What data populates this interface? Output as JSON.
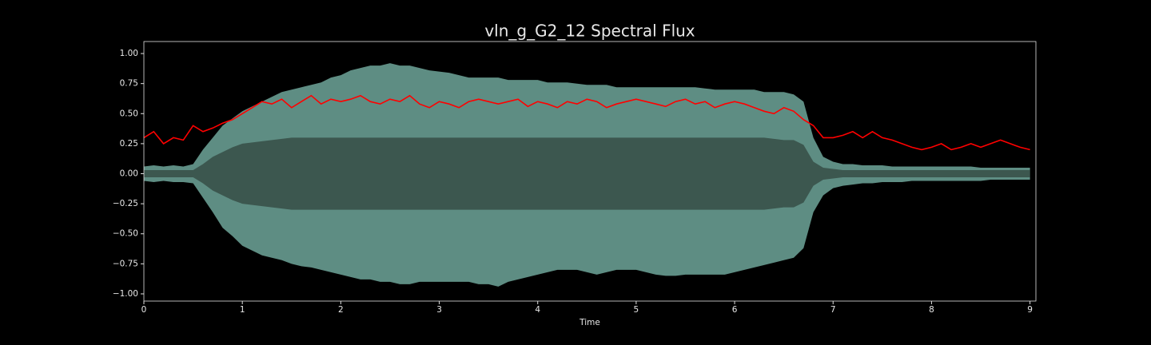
{
  "chart_data": {
    "type": "waveform",
    "title": "vln_g_G2_12 Spectral Flux",
    "xlabel": "Time",
    "xlim": [
      0,
      9.06
    ],
    "ylim": [
      -1.06,
      1.1
    ],
    "xticks": [
      0,
      1,
      2,
      3,
      4,
      5,
      6,
      7,
      8,
      9
    ],
    "yticks": [
      {
        "value": -1,
        "label": "−1.00"
      },
      {
        "value": -0.75,
        "label": "−0.75"
      },
      {
        "value": -0.5,
        "label": "−0.50"
      },
      {
        "value": -0.25,
        "label": "−0.25"
      },
      {
        "value": 0,
        "label": "0.00"
      },
      {
        "value": 0.25,
        "label": "0.25"
      },
      {
        "value": 0.5,
        "label": "0.50"
      },
      {
        "value": 0.75,
        "label": "0.75"
      },
      {
        "value": 1,
        "label": "1.00"
      }
    ],
    "x": [
      0,
      0.1,
      0.2,
      0.3,
      0.4,
      0.5,
      0.6,
      0.7,
      0.8,
      0.9,
      1,
      1.1,
      1.2,
      1.3,
      1.4,
      1.5,
      1.6,
      1.7,
      1.8,
      1.9,
      2,
      2.1,
      2.2,
      2.3,
      2.4,
      2.5,
      2.6,
      2.7,
      2.8,
      2.9,
      3,
      3.1,
      3.2,
      3.3,
      3.4,
      3.5,
      3.6,
      3.7,
      3.8,
      3.9,
      4,
      4.1,
      4.2,
      4.3,
      4.4,
      4.5,
      4.6,
      4.7,
      4.8,
      4.9,
      5,
      5.1,
      5.2,
      5.3,
      5.4,
      5.5,
      5.6,
      5.7,
      5.8,
      5.9,
      6,
      6.1,
      6.2,
      6.3,
      6.4,
      6.5,
      6.6,
      6.7,
      6.8,
      6.9,
      7,
      7.1,
      7.2,
      7.3,
      7.4,
      7.5,
      7.6,
      7.7,
      7.8,
      7.9,
      8,
      8.1,
      8.2,
      8.3,
      8.4,
      8.5,
      8.6,
      8.7,
      8.8,
      8.9,
      9
    ],
    "wave": {
      "color": "#5e8d83",
      "upper": [
        0.06,
        0.07,
        0.06,
        0.07,
        0.06,
        0.08,
        0.2,
        0.3,
        0.4,
        0.46,
        0.52,
        0.56,
        0.6,
        0.64,
        0.68,
        0.7,
        0.72,
        0.74,
        0.76,
        0.8,
        0.82,
        0.86,
        0.88,
        0.9,
        0.9,
        0.92,
        0.9,
        0.9,
        0.88,
        0.86,
        0.85,
        0.84,
        0.82,
        0.8,
        0.8,
        0.8,
        0.8,
        0.78,
        0.78,
        0.78,
        0.78,
        0.76,
        0.76,
        0.76,
        0.75,
        0.74,
        0.74,
        0.74,
        0.72,
        0.72,
        0.72,
        0.72,
        0.72,
        0.72,
        0.72,
        0.72,
        0.72,
        0.71,
        0.7,
        0.7,
        0.7,
        0.7,
        0.7,
        0.68,
        0.68,
        0.68,
        0.66,
        0.6,
        0.3,
        0.14,
        0.1,
        0.08,
        0.08,
        0.07,
        0.07,
        0.07,
        0.06,
        0.06,
        0.06,
        0.06,
        0.06,
        0.06,
        0.06,
        0.06,
        0.06,
        0.05,
        0.05,
        0.05,
        0.05,
        0.05,
        0.05
      ],
      "lower": [
        -0.06,
        -0.07,
        -0.06,
        -0.07,
        -0.07,
        -0.08,
        -0.2,
        -0.32,
        -0.45,
        -0.52,
        -0.6,
        -0.64,
        -0.68,
        -0.7,
        -0.72,
        -0.75,
        -0.77,
        -0.78,
        -0.8,
        -0.82,
        -0.84,
        -0.86,
        -0.88,
        -0.88,
        -0.9,
        -0.9,
        -0.92,
        -0.92,
        -0.9,
        -0.9,
        -0.9,
        -0.9,
        -0.9,
        -0.9,
        -0.92,
        -0.92,
        -0.94,
        -0.9,
        -0.88,
        -0.86,
        -0.84,
        -0.82,
        -0.8,
        -0.8,
        -0.8,
        -0.82,
        -0.84,
        -0.82,
        -0.8,
        -0.8,
        -0.8,
        -0.82,
        -0.84,
        -0.85,
        -0.85,
        -0.84,
        -0.84,
        -0.84,
        -0.84,
        -0.84,
        -0.82,
        -0.8,
        -0.78,
        -0.76,
        -0.74,
        -0.72,
        -0.7,
        -0.62,
        -0.32,
        -0.18,
        -0.12,
        -0.1,
        -0.09,
        -0.08,
        -0.08,
        -0.07,
        -0.07,
        -0.07,
        -0.06,
        -0.06,
        -0.06,
        -0.06,
        -0.06,
        -0.06,
        -0.06,
        -0.06,
        -0.05,
        -0.05,
        -0.05,
        -0.05,
        -0.05
      ]
    },
    "wave_core": {
      "color": "#3c574f",
      "upper": [
        0.03,
        0.03,
        0.03,
        0.03,
        0.03,
        0.03,
        0.08,
        0.14,
        0.18,
        0.22,
        0.25,
        0.26,
        0.27,
        0.28,
        0.29,
        0.3,
        0.3,
        0.3,
        0.3,
        0.3,
        0.3,
        0.3,
        0.3,
        0.3,
        0.3,
        0.3,
        0.3,
        0.3,
        0.3,
        0.3,
        0.3,
        0.3,
        0.3,
        0.3,
        0.3,
        0.3,
        0.3,
        0.3,
        0.3,
        0.3,
        0.3,
        0.3,
        0.3,
        0.3,
        0.3,
        0.3,
        0.3,
        0.3,
        0.3,
        0.3,
        0.3,
        0.3,
        0.3,
        0.3,
        0.3,
        0.3,
        0.3,
        0.3,
        0.3,
        0.3,
        0.3,
        0.3,
        0.3,
        0.3,
        0.29,
        0.28,
        0.28,
        0.24,
        0.1,
        0.05,
        0.04,
        0.03,
        0.03,
        0.03,
        0.03,
        0.03,
        0.03,
        0.03,
        0.03,
        0.03,
        0.03,
        0.03,
        0.03,
        0.03,
        0.03,
        0.03,
        0.03,
        0.03,
        0.03,
        0.03,
        0.03
      ],
      "lower": [
        -0.03,
        -0.03,
        -0.03,
        -0.03,
        -0.03,
        -0.03,
        -0.08,
        -0.14,
        -0.18,
        -0.22,
        -0.25,
        -0.26,
        -0.27,
        -0.28,
        -0.29,
        -0.3,
        -0.3,
        -0.3,
        -0.3,
        -0.3,
        -0.3,
        -0.3,
        -0.3,
        -0.3,
        -0.3,
        -0.3,
        -0.3,
        -0.3,
        -0.3,
        -0.3,
        -0.3,
        -0.3,
        -0.3,
        -0.3,
        -0.3,
        -0.3,
        -0.3,
        -0.3,
        -0.3,
        -0.3,
        -0.3,
        -0.3,
        -0.3,
        -0.3,
        -0.3,
        -0.3,
        -0.3,
        -0.3,
        -0.3,
        -0.3,
        -0.3,
        -0.3,
        -0.3,
        -0.3,
        -0.3,
        -0.3,
        -0.3,
        -0.3,
        -0.3,
        -0.3,
        -0.3,
        -0.3,
        -0.3,
        -0.3,
        -0.29,
        -0.28,
        -0.28,
        -0.24,
        -0.1,
        -0.05,
        -0.04,
        -0.03,
        -0.03,
        -0.03,
        -0.03,
        -0.03,
        -0.03,
        -0.03,
        -0.03,
        -0.03,
        -0.03,
        -0.03,
        -0.03,
        -0.03,
        -0.03,
        -0.03,
        -0.03,
        -0.03,
        -0.03,
        -0.03,
        -0.03
      ]
    },
    "flux": {
      "color": "#ff0000",
      "values": [
        0.3,
        0.35,
        0.25,
        0.3,
        0.28,
        0.4,
        0.35,
        0.38,
        0.42,
        0.45,
        0.5,
        0.55,
        0.6,
        0.58,
        0.62,
        0.55,
        0.6,
        0.65,
        0.58,
        0.62,
        0.6,
        0.62,
        0.65,
        0.6,
        0.58,
        0.62,
        0.6,
        0.65,
        0.58,
        0.55,
        0.6,
        0.58,
        0.55,
        0.6,
        0.62,
        0.6,
        0.58,
        0.6,
        0.62,
        0.56,
        0.6,
        0.58,
        0.55,
        0.6,
        0.58,
        0.62,
        0.6,
        0.55,
        0.58,
        0.6,
        0.62,
        0.6,
        0.58,
        0.56,
        0.6,
        0.62,
        0.58,
        0.6,
        0.55,
        0.58,
        0.6,
        0.58,
        0.55,
        0.52,
        0.5,
        0.55,
        0.52,
        0.45,
        0.4,
        0.3,
        0.3,
        0.32,
        0.35,
        0.3,
        0.35,
        0.3,
        0.28,
        0.25,
        0.22,
        0.2,
        0.22,
        0.25,
        0.2,
        0.22,
        0.25,
        0.22,
        0.25,
        0.28,
        0.25,
        0.22,
        0.2
      ]
    }
  }
}
